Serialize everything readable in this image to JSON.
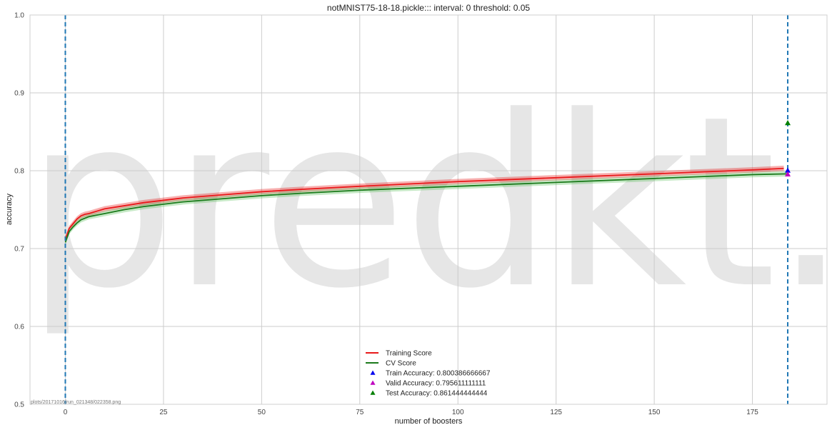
{
  "chart_data": {
    "type": "line",
    "title": "notMNIST75-18-18.pickle::: interval: 0 threshold: 0.05",
    "xlabel": "number of boosters",
    "ylabel": "accuracy",
    "xlim": [
      -9,
      194
    ],
    "ylim": [
      0.5,
      1.0
    ],
    "xticks": [
      0,
      25,
      50,
      75,
      100,
      125,
      150,
      175
    ],
    "yticks": [
      0.5,
      0.6,
      0.7,
      0.8,
      0.9,
      1.0
    ],
    "ytick_labels": [
      "0.5",
      "0.6",
      "0.7",
      "0.8",
      "0.9",
      "1.0"
    ],
    "grid": true,
    "legend_position": "bottom-center",
    "series": [
      {
        "name": "Training Score",
        "color": "#e8191a",
        "band_color": "#e8191a",
        "x": [
          0,
          1,
          2,
          3,
          4,
          5,
          6,
          8,
          10,
          15,
          20,
          25,
          30,
          40,
          50,
          60,
          75,
          100,
          125,
          150,
          175,
          183
        ],
        "values": [
          0.712,
          0.726,
          0.732,
          0.738,
          0.742,
          0.744,
          0.745,
          0.748,
          0.751,
          0.755,
          0.759,
          0.762,
          0.765,
          0.769,
          0.773,
          0.776,
          0.78,
          0.786,
          0.791,
          0.796,
          0.801,
          0.803
        ]
      },
      {
        "name": "CV Score",
        "color": "#1b7a1b",
        "band_color": "#5cbf5c",
        "x": [
          0,
          1,
          2,
          3,
          4,
          5,
          6,
          8,
          10,
          15,
          20,
          25,
          30,
          40,
          50,
          60,
          75,
          100,
          125,
          150,
          175,
          184
        ],
        "values": [
          0.708,
          0.722,
          0.728,
          0.733,
          0.737,
          0.739,
          0.741,
          0.743,
          0.745,
          0.75,
          0.754,
          0.757,
          0.76,
          0.764,
          0.768,
          0.771,
          0.775,
          0.78,
          0.785,
          0.79,
          0.795,
          0.796
        ]
      }
    ],
    "markers": [
      {
        "name": "Train Accuracy: 0.800386666667",
        "x": 184,
        "y": 0.800386666667,
        "color": "#0000ee"
      },
      {
        "name": "Valid Accuracy: 0.795611111111",
        "x": 184,
        "y": 0.795611111111,
        "color": "#bf00bf"
      },
      {
        "name": "Test Accuracy: 0.861444444444",
        "x": 184,
        "y": 0.861444444444,
        "color": "#007f00"
      }
    ],
    "vlines": [
      {
        "x": 0,
        "color": "#1f77b4"
      },
      {
        "x": 184,
        "color": "#1f77b4"
      }
    ],
    "watermark": "predkt.io",
    "footer": "plots/20171016/run_021348/022358.png"
  }
}
